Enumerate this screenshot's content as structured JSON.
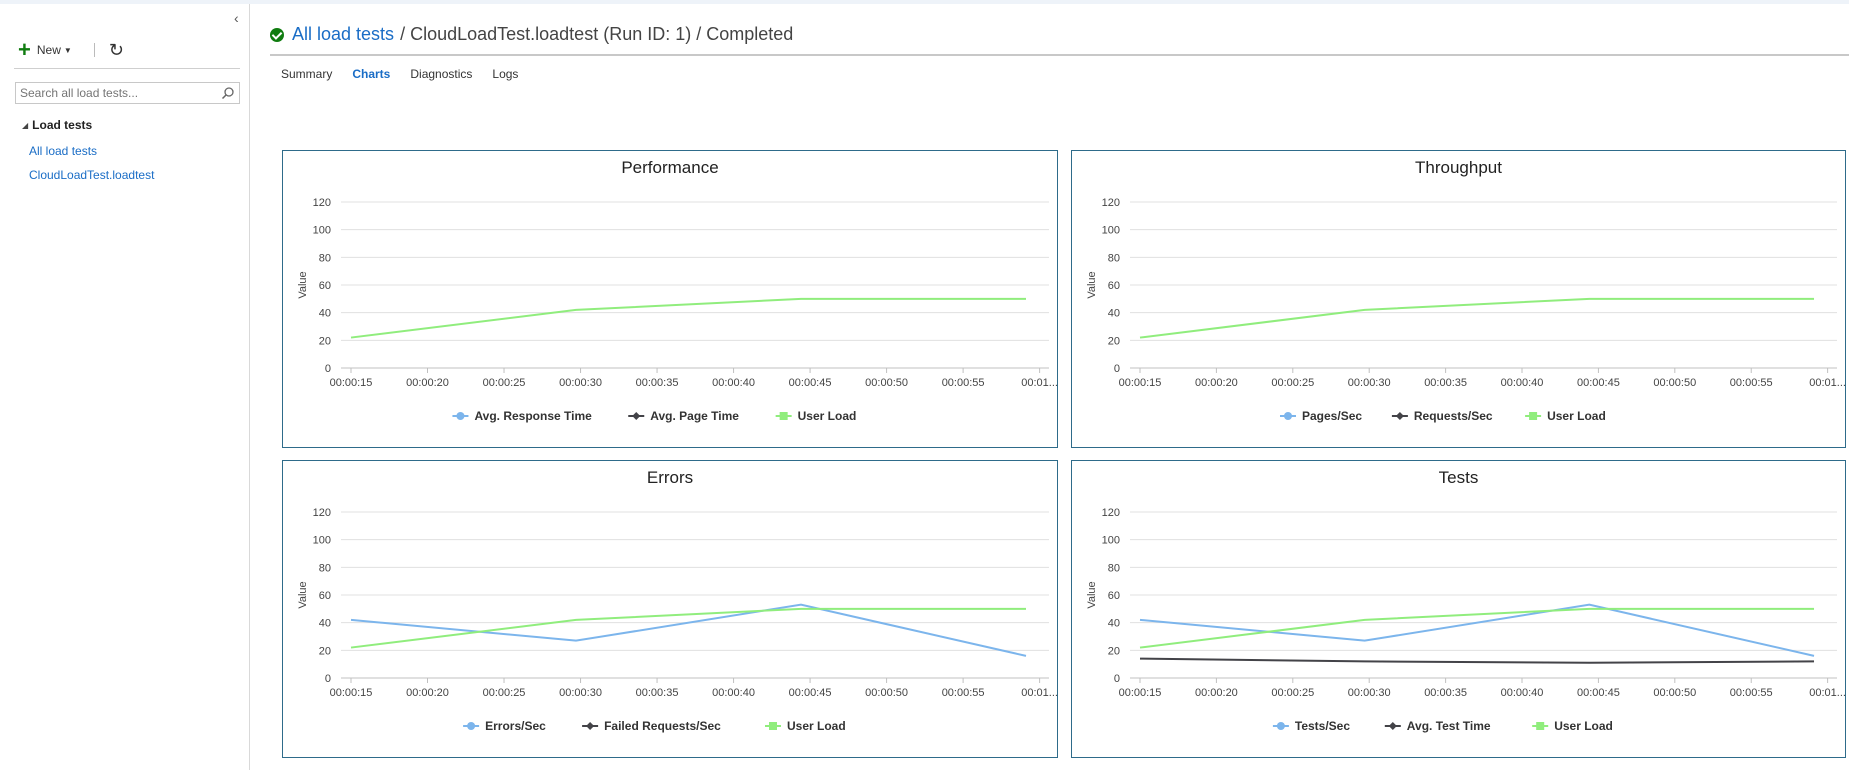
{
  "sidebar": {
    "collapse_label": "‹",
    "new_label": "New",
    "search_placeholder": "Search all load tests...",
    "tree_header": "Load tests",
    "items": [
      {
        "label": "All load tests"
      },
      {
        "label": "CloudLoadTest.loadtest"
      }
    ]
  },
  "header": {
    "link": "All load tests",
    "rest": "/ CloudLoadTest.loadtest (Run ID: 1) / Completed"
  },
  "tabs": [
    {
      "label": "Summary",
      "active": false
    },
    {
      "label": "Charts",
      "active": true
    },
    {
      "label": "Diagnostics",
      "active": false
    },
    {
      "label": "Logs",
      "active": false
    }
  ],
  "colors": {
    "blue": "#7cb5ec",
    "black": "#434348",
    "green": "#90ed7d",
    "panel_border": "#2e6b8a",
    "link": "#1a6dc6"
  },
  "chart_data": [
    {
      "type": "line",
      "title": "Performance",
      "ylabel": "Value",
      "ylim": [
        0,
        120
      ],
      "yticks": [
        0,
        20,
        40,
        60,
        80,
        100,
        120
      ],
      "xticks": [
        "00:00:15",
        "00:00:20",
        "00:00:25",
        "00:00:30",
        "00:00:35",
        "00:00:40",
        "00:00:45",
        "00:00:50",
        "00:00:55",
        "00:01..."
      ],
      "x_range": [
        15,
        61
      ],
      "grid": true,
      "legend_position": "bottom",
      "series": [
        {
          "name": "Avg. Response Time",
          "color": "#7cb5ec",
          "marker": "circle",
          "x": [],
          "values": []
        },
        {
          "name": "Avg. Page Time",
          "color": "#434348",
          "marker": "diamond",
          "x": [],
          "values": []
        },
        {
          "name": "User Load",
          "color": "#90ed7d",
          "marker": "square",
          "x": [
            15,
            30,
            45,
            60
          ],
          "values": [
            22,
            42,
            50,
            50
          ]
        }
      ]
    },
    {
      "type": "line",
      "title": "Throughput",
      "ylabel": "Value",
      "ylim": [
        0,
        120
      ],
      "yticks": [
        0,
        20,
        40,
        60,
        80,
        100,
        120
      ],
      "xticks": [
        "00:00:15",
        "00:00:20",
        "00:00:25",
        "00:00:30",
        "00:00:35",
        "00:00:40",
        "00:00:45",
        "00:00:50",
        "00:00:55",
        "00:01..."
      ],
      "x_range": [
        15,
        61
      ],
      "grid": true,
      "legend_position": "bottom",
      "series": [
        {
          "name": "Pages/Sec",
          "color": "#7cb5ec",
          "marker": "circle",
          "x": [],
          "values": []
        },
        {
          "name": "Requests/Sec",
          "color": "#434348",
          "marker": "diamond",
          "x": [],
          "values": []
        },
        {
          "name": "User Load",
          "color": "#90ed7d",
          "marker": "square",
          "x": [
            15,
            30,
            45,
            60
          ],
          "values": [
            22,
            42,
            50,
            50
          ]
        }
      ]
    },
    {
      "type": "line",
      "title": "Errors",
      "ylabel": "Value",
      "ylim": [
        0,
        120
      ],
      "yticks": [
        0,
        20,
        40,
        60,
        80,
        100,
        120
      ],
      "xticks": [
        "00:00:15",
        "00:00:20",
        "00:00:25",
        "00:00:30",
        "00:00:35",
        "00:00:40",
        "00:00:45",
        "00:00:50",
        "00:00:55",
        "00:01..."
      ],
      "x_range": [
        15,
        61
      ],
      "grid": true,
      "legend_position": "bottom",
      "series": [
        {
          "name": "Errors/Sec",
          "color": "#7cb5ec",
          "marker": "circle",
          "x": [
            15,
            30,
            45,
            60
          ],
          "values": [
            42,
            27,
            53,
            16
          ]
        },
        {
          "name": "Failed Requests/Sec",
          "color": "#434348",
          "marker": "diamond",
          "x": [],
          "values": []
        },
        {
          "name": "User Load",
          "color": "#90ed7d",
          "marker": "square",
          "x": [
            15,
            30,
            45,
            60
          ],
          "values": [
            22,
            42,
            50,
            50
          ]
        }
      ]
    },
    {
      "type": "line",
      "title": "Tests",
      "ylabel": "Value",
      "ylim": [
        0,
        120
      ],
      "yticks": [
        0,
        20,
        40,
        60,
        80,
        100,
        120
      ],
      "xticks": [
        "00:00:15",
        "00:00:20",
        "00:00:25",
        "00:00:30",
        "00:00:35",
        "00:00:40",
        "00:00:45",
        "00:00:50",
        "00:00:55",
        "00:01..."
      ],
      "x_range": [
        15,
        61
      ],
      "grid": true,
      "legend_position": "bottom",
      "series": [
        {
          "name": "Tests/Sec",
          "color": "#7cb5ec",
          "marker": "circle",
          "x": [
            15,
            30,
            45,
            60
          ],
          "values": [
            42,
            27,
            53,
            16
          ]
        },
        {
          "name": "Avg. Test Time",
          "color": "#434348",
          "marker": "diamond",
          "x": [
            15,
            30,
            45,
            60
          ],
          "values": [
            14,
            12,
            11,
            12
          ]
        },
        {
          "name": "User Load",
          "color": "#90ed7d",
          "marker": "square",
          "x": [
            15,
            30,
            45,
            60
          ],
          "values": [
            22,
            42,
            50,
            50
          ]
        }
      ]
    }
  ]
}
